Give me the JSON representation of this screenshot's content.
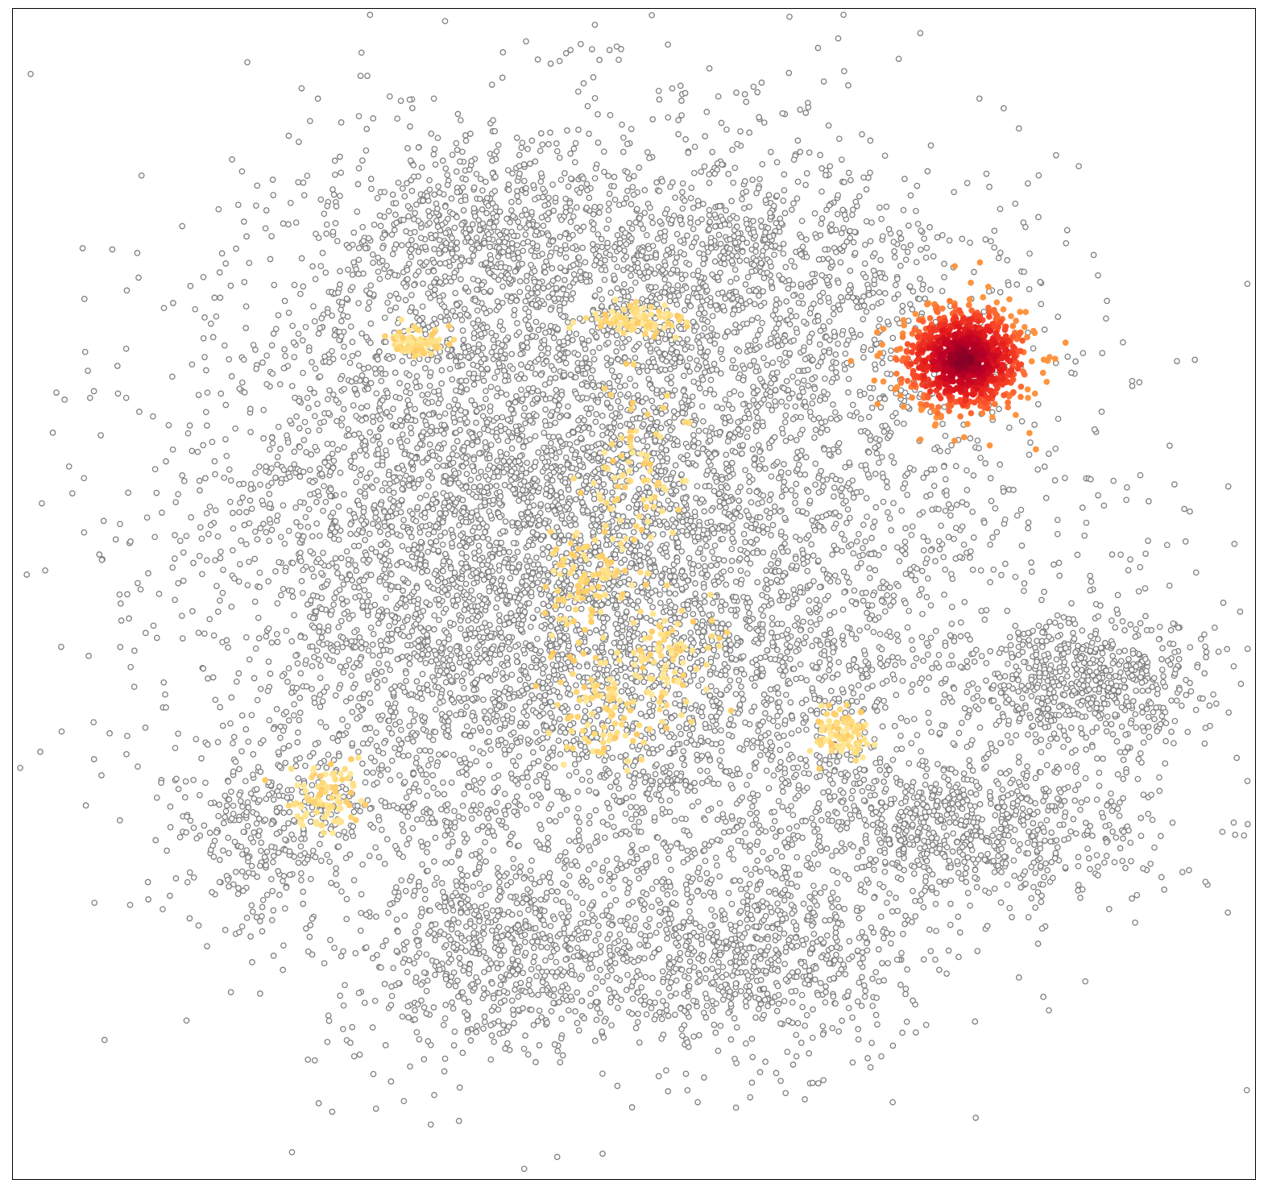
{
  "chart_data": {
    "type": "scatter",
    "title": "",
    "xlabel": "",
    "ylabel": "",
    "xlim": [
      -1,
      1
    ],
    "ylim": [
      -1,
      1
    ],
    "grid": false,
    "axes_ticks": false,
    "legend": "none",
    "marker": "circle",
    "colors": {
      "background_point_fill": "#ffffff",
      "background_point_edge": "#808080",
      "colormap": [
        "#fff2b0",
        "#fed976",
        "#feb24c",
        "#fd8d3c",
        "#fc4e2a",
        "#e31a1c",
        "#bd0026",
        "#800026"
      ],
      "frame": "#000000"
    },
    "series": [
      {
        "role": "background",
        "approx_points": 12000,
        "cloud": [
          {
            "cx": -0.02,
            "cy": 0.05,
            "rx": 0.58,
            "ry": 0.62,
            "weight": 0.55
          },
          {
            "cx": -0.3,
            "cy": 0.12,
            "rx": 0.35,
            "ry": 0.45,
            "weight": 0.12
          },
          {
            "cx": 0.15,
            "cy": 0.55,
            "rx": 0.35,
            "ry": 0.18,
            "weight": 0.06
          },
          {
            "cx": -0.25,
            "cy": 0.62,
            "rx": 0.22,
            "ry": 0.15,
            "weight": 0.04
          },
          {
            "cx": 0.72,
            "cy": -0.15,
            "rx": 0.18,
            "ry": 0.1,
            "weight": 0.05
          },
          {
            "cx": 0.55,
            "cy": -0.4,
            "rx": 0.28,
            "ry": 0.12,
            "weight": 0.06
          },
          {
            "cx": 0.2,
            "cy": -0.62,
            "rx": 0.22,
            "ry": 0.14,
            "weight": 0.05
          },
          {
            "cx": -0.2,
            "cy": -0.62,
            "rx": 0.22,
            "ry": 0.14,
            "weight": 0.05
          },
          {
            "cx": -0.6,
            "cy": -0.4,
            "rx": 0.12,
            "ry": 0.14,
            "weight": 0.02
          }
        ]
      },
      {
        "role": "highlight",
        "approx_points": 900,
        "center": [
          0.53,
          0.4
        ],
        "spread": [
          0.09,
          0.08
        ],
        "value_range": [
          0.4,
          1.0
        ]
      },
      {
        "role": "low",
        "approx_points": 700,
        "value_range": [
          0.05,
          0.2
        ],
        "clusters": [
          {
            "cx": 0.0,
            "cy": 0.2,
            "rx": 0.06,
            "ry": 0.12
          },
          {
            "cx": -0.08,
            "cy": 0.02,
            "rx": 0.05,
            "ry": 0.1
          },
          {
            "cx": -0.05,
            "cy": -0.2,
            "rx": 0.07,
            "ry": 0.08
          },
          {
            "cx": 0.06,
            "cy": -0.1,
            "rx": 0.06,
            "ry": 0.08
          },
          {
            "cx": 0.33,
            "cy": -0.24,
            "rx": 0.04,
            "ry": 0.04
          },
          {
            "cx": -0.5,
            "cy": -0.35,
            "rx": 0.05,
            "ry": 0.05
          },
          {
            "cx": -0.35,
            "cy": 0.43,
            "rx": 0.04,
            "ry": 0.02
          },
          {
            "cx": 0.0,
            "cy": 0.47,
            "rx": 0.06,
            "ry": 0.02
          }
        ]
      }
    ]
  }
}
